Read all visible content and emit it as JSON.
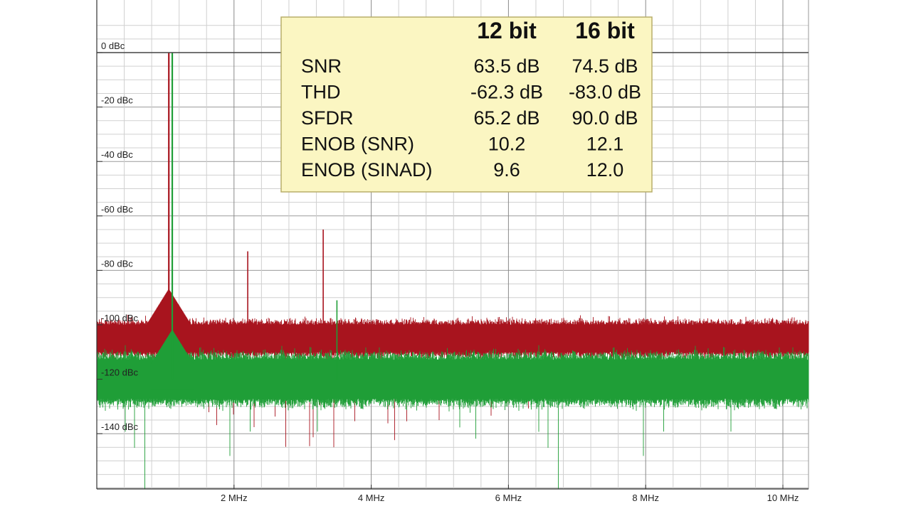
{
  "chart_data": {
    "type": "line",
    "title": "",
    "xlabel": "",
    "ylabel": "",
    "x_unit": "MHz",
    "xlim": [
      0,
      10.4
    ],
    "ylim": [
      -160,
      10
    ],
    "x_ticks": [
      2,
      4,
      6,
      8,
      10
    ],
    "x_tick_labels": [
      "2 MHz",
      "4 MHz",
      "6 MHz",
      "8 MHz",
      "10 MHz"
    ],
    "y_ticks": [
      0,
      -20,
      -40,
      -60,
      -80,
      -100,
      -120,
      -140
    ],
    "y_tick_labels": [
      "0 dBc",
      "-20 dBc",
      "-40 dBc",
      "-60 dBc",
      "-80 dBc",
      "-100 dBc",
      "-120 dBc",
      "-140 dBc"
    ],
    "grid": true,
    "legend_placement": "none",
    "series": [
      {
        "color": "#a8141e",
        "noise_floor_dbc": -105,
        "peaks": [
          {
            "x": 1.05,
            "y": 0
          },
          {
            "x": 2.2,
            "y": -73
          },
          {
            "x": 3.3,
            "y": -65
          },
          {
            "x": 6.6,
            "y": -98
          }
        ]
      },
      {
        "color": "#1f9e37",
        "noise_floor_dbc": -120,
        "peaks": [
          {
            "x": 1.1,
            "y": 0
          },
          {
            "x": 3.5,
            "y": -91
          }
        ]
      }
    ],
    "annotation_table": {
      "columns": [
        "",
        "12 bit",
        "16 bit"
      ],
      "rows": [
        [
          "SNR",
          "63.5 dB",
          "74.5 dB"
        ],
        [
          "THD",
          "-62.3 dB",
          "-83.0 dB"
        ],
        [
          "SFDR",
          "65.2 dB",
          "90.0 dB"
        ],
        [
          "ENOB (SNR)",
          "10.2",
          "12.1"
        ],
        [
          "ENOB (SINAD)",
          "9.6",
          "12.0"
        ]
      ]
    }
  }
}
